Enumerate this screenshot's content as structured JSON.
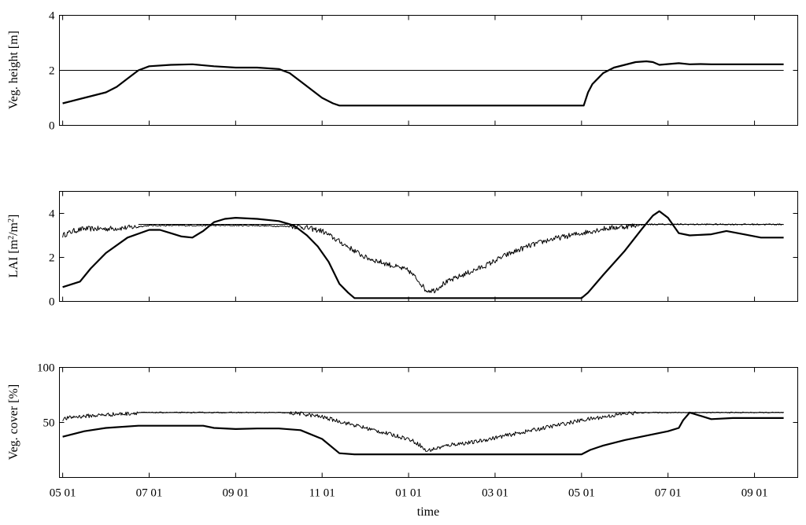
{
  "chart_data": [
    {
      "type": "line",
      "ylabel": "Veg. height [m]",
      "ylim": [
        0,
        4
      ],
      "yticks": [
        "0",
        "2",
        "4"
      ],
      "grid": false,
      "series": [
        {
          "role": "reference-thin",
          "color": "#000000",
          "points": [
            [
              0,
              2
            ],
            [
              33.35,
              2
            ]
          ]
        },
        {
          "role": "model-thick",
          "color": "#000000",
          "points": [
            [
              0,
              0.8
            ],
            [
              1,
              1.0
            ],
            [
              2,
              1.2
            ],
            [
              2.5,
              1.4
            ],
            [
              3,
              1.7
            ],
            [
              3.5,
              2.0
            ],
            [
              4,
              2.15
            ],
            [
              5,
              2.2
            ],
            [
              6,
              2.22
            ],
            [
              7,
              2.15
            ],
            [
              8,
              2.1
            ],
            [
              9,
              2.1
            ],
            [
              10,
              2.05
            ],
            [
              10.5,
              1.9
            ],
            [
              11,
              1.6
            ],
            [
              11.5,
              1.3
            ],
            [
              12,
              1.0
            ],
            [
              12.5,
              0.8
            ],
            [
              12.8,
              0.72
            ],
            [
              24.1,
              0.72
            ],
            [
              24.3,
              1.2
            ],
            [
              24.5,
              1.5
            ],
            [
              25,
              1.9
            ],
            [
              25.5,
              2.1
            ],
            [
              26,
              2.2
            ],
            [
              26.5,
              2.3
            ],
            [
              27,
              2.33
            ],
            [
              27.3,
              2.3
            ],
            [
              27.6,
              2.2
            ],
            [
              28.5,
              2.26
            ],
            [
              29,
              2.22
            ],
            [
              29.5,
              2.23
            ],
            [
              30,
              2.22
            ],
            [
              31,
              2.22
            ],
            [
              33.35,
              2.22
            ]
          ]
        }
      ]
    },
    {
      "type": "line",
      "ylabel": "LAI [m2/m2]",
      "ylim": [
        0,
        5
      ],
      "yticks": [
        "0",
        "2",
        "4"
      ],
      "grid": false,
      "series": [
        {
          "role": "reference-thin",
          "color": "#000000",
          "points": [
            [
              3.5,
              3.5
            ],
            [
              33.35,
              3.5
            ]
          ]
        },
        {
          "role": "observed-noisy",
          "color": "#000000",
          "noise": 0.12,
          "points": [
            [
              0,
              3.0
            ],
            [
              0.5,
              3.2
            ],
            [
              1,
              3.3
            ],
            [
              2,
              3.3
            ],
            [
              3,
              3.35
            ],
            [
              3.5,
              3.4
            ],
            [
              4,
              3.45
            ],
            [
              5,
              3.45
            ],
            [
              7,
              3.45
            ],
            [
              9,
              3.45
            ],
            [
              10,
              3.42
            ],
            [
              11,
              3.4
            ],
            [
              12,
              3.2
            ],
            [
              13,
              2.6
            ],
            [
              14,
              2.0
            ],
            [
              15,
              1.7
            ],
            [
              16,
              1.4
            ],
            [
              16.5,
              0.9
            ],
            [
              16.8,
              0.5
            ],
            [
              17.2,
              0.5
            ],
            [
              17.6,
              0.8
            ],
            [
              18.5,
              1.2
            ],
            [
              19.5,
              1.6
            ],
            [
              20.5,
              2.1
            ],
            [
              21.5,
              2.5
            ],
            [
              22.5,
              2.8
            ],
            [
              23.5,
              3.0
            ],
            [
              24,
              3.1
            ],
            [
              24.5,
              3.2
            ],
            [
              25,
              3.3
            ],
            [
              26,
              3.4
            ],
            [
              27,
              3.5
            ],
            [
              28,
              3.5
            ],
            [
              33.35,
              3.5
            ]
          ]
        },
        {
          "role": "model-thick",
          "color": "#000000",
          "points": [
            [
              0,
              0.65
            ],
            [
              0.8,
              0.9
            ],
            [
              1.3,
              1.5
            ],
            [
              2,
              2.2
            ],
            [
              3,
              2.9
            ],
            [
              4,
              3.25
            ],
            [
              4.5,
              3.25
            ],
            [
              5,
              3.1
            ],
            [
              5.5,
              2.95
            ],
            [
              6,
              2.9
            ],
            [
              6.5,
              3.2
            ],
            [
              7,
              3.6
            ],
            [
              7.5,
              3.75
            ],
            [
              8,
              3.8
            ],
            [
              9,
              3.75
            ],
            [
              10,
              3.65
            ],
            [
              10.7,
              3.45
            ],
            [
              11.3,
              3.0
            ],
            [
              11.8,
              2.5
            ],
            [
              12.3,
              1.8
            ],
            [
              12.8,
              0.8
            ],
            [
              13.2,
              0.4
            ],
            [
              13.5,
              0.15
            ],
            [
              24,
              0.15
            ],
            [
              24.3,
              0.4
            ],
            [
              25,
              1.2
            ],
            [
              26,
              2.3
            ],
            [
              26.8,
              3.3
            ],
            [
              27.3,
              3.9
            ],
            [
              27.6,
              4.1
            ],
            [
              28,
              3.8
            ],
            [
              28.5,
              3.1
            ],
            [
              29,
              3.0
            ],
            [
              30,
              3.05
            ],
            [
              30.7,
              3.2
            ],
            [
              31.5,
              3.05
            ],
            [
              32.3,
              2.9
            ],
            [
              33.35,
              2.9
            ]
          ]
        }
      ]
    },
    {
      "type": "line",
      "ylabel": "Veg. cover [%]",
      "xlabel": "time",
      "ylim": [
        0,
        100
      ],
      "yticks": [
        "50",
        "100"
      ],
      "xticks": [
        "05 01",
        "07 01",
        "09 01",
        "11 01",
        "01 01",
        "03 01",
        "05 01",
        "07 01",
        "09 01"
      ],
      "grid": false,
      "series": [
        {
          "role": "reference-thin",
          "color": "#000000",
          "points": [
            [
              3.5,
              59
            ],
            [
              33.35,
              59
            ]
          ]
        },
        {
          "role": "observed-noisy",
          "color": "#000000",
          "noise": 1.8,
          "points": [
            [
              0,
              53
            ],
            [
              0.5,
              55
            ],
            [
              2,
              57
            ],
            [
              3,
              58
            ],
            [
              3.5,
              59
            ],
            [
              8,
              59
            ],
            [
              10,
              59
            ],
            [
              11,
              58
            ],
            [
              12,
              55
            ],
            [
              13,
              50
            ],
            [
              14,
              45
            ],
            [
              15,
              40
            ],
            [
              16,
              35
            ],
            [
              16.5,
              30
            ],
            [
              16.8,
              24
            ],
            [
              17.2,
              26
            ],
            [
              18,
              30
            ],
            [
              19,
              32
            ],
            [
              20,
              36
            ],
            [
              21,
              40
            ],
            [
              22,
              44
            ],
            [
              23,
              48
            ],
            [
              24,
              52
            ],
            [
              25,
              55
            ],
            [
              26,
              58
            ],
            [
              27,
              59
            ],
            [
              33.35,
              59
            ]
          ]
        },
        {
          "role": "model-thick",
          "color": "#000000",
          "points": [
            [
              0,
              37
            ],
            [
              1,
              42
            ],
            [
              2,
              45
            ],
            [
              3.5,
              47
            ],
            [
              5,
              47
            ],
            [
              6.5,
              47
            ],
            [
              7,
              45
            ],
            [
              8,
              44
            ],
            [
              9,
              44.5
            ],
            [
              10,
              44.5
            ],
            [
              11,
              43
            ],
            [
              12,
              35
            ],
            [
              12.8,
              22
            ],
            [
              13.5,
              21
            ],
            [
              24,
              21
            ],
            [
              24.4,
              25
            ],
            [
              25,
              29
            ],
            [
              26,
              34
            ],
            [
              27,
              38
            ],
            [
              28,
              42
            ],
            [
              28.5,
              45
            ],
            [
              28.7,
              52
            ],
            [
              29,
              59
            ],
            [
              29.5,
              56
            ],
            [
              30,
              53
            ],
            [
              31,
              54
            ],
            [
              33.35,
              54
            ]
          ]
        }
      ]
    }
  ]
}
